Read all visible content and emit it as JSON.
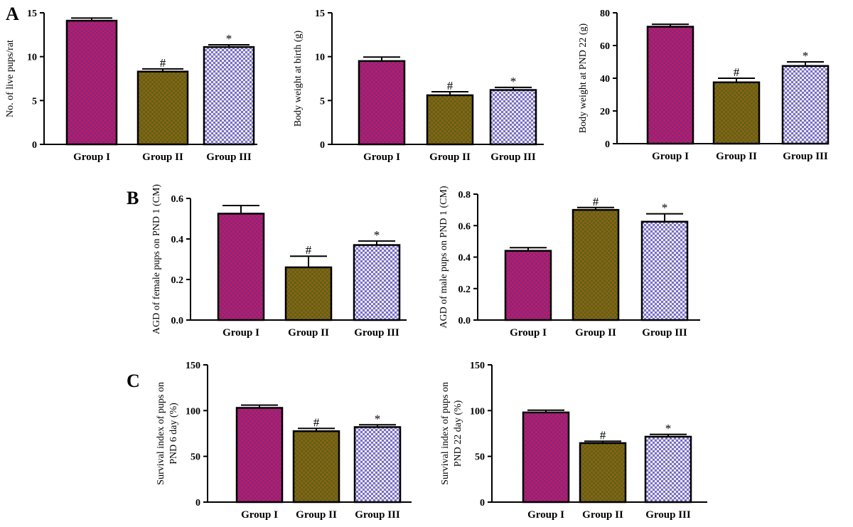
{
  "panel_letters": [
    "A",
    "B",
    "C"
  ],
  "colors": {
    "group_i": [
      "#c8185a",
      "#7a2a8a"
    ],
    "group_ii": [
      "#9a5a14",
      "#4f6a16"
    ],
    "group_iii": [
      "#7b6fc4",
      "#e8e8f2"
    ]
  },
  "chart_data": [
    {
      "type": "bar",
      "panel": "A",
      "ylabel": "No. of live pups/rat",
      "categories": [
        "Group I",
        "Group II",
        "Group III"
      ],
      "values": [
        14.1,
        8.3,
        11.1
      ],
      "errors": [
        0.3,
        0.3,
        0.25
      ],
      "annotations": [
        "",
        "#",
        "*"
      ],
      "ylim": [
        0,
        15
      ],
      "yticks": [
        "0",
        "5",
        "10",
        "15"
      ],
      "ytick_values": [
        0,
        5,
        10,
        15
      ],
      "grid": false
    },
    {
      "type": "bar",
      "panel": "A",
      "ylabel": "Body weight at birth (g)",
      "categories": [
        "Group I",
        "Group II",
        "Group III"
      ],
      "values": [
        9.5,
        5.6,
        6.2
      ],
      "errors": [
        0.45,
        0.4,
        0.3
      ],
      "annotations": [
        "",
        "#",
        "*"
      ],
      "ylim": [
        0,
        15
      ],
      "yticks": [
        "0",
        "5",
        "10",
        "15"
      ],
      "ytick_values": [
        0,
        5,
        10,
        15
      ],
      "grid": false
    },
    {
      "type": "bar",
      "panel": "A",
      "ylabel": "Body weight at PND 22 (g)",
      "categories": [
        "Group I",
        "Group II",
        "Group III"
      ],
      "values": [
        71.5,
        37.5,
        47.5
      ],
      "errors": [
        1.5,
        2.5,
        2.5
      ],
      "annotations": [
        "",
        "#",
        "*"
      ],
      "ylim": [
        0,
        80
      ],
      "yticks": [
        "0",
        "20",
        "40",
        "60",
        "80"
      ],
      "ytick_values": [
        0,
        20,
        40,
        60,
        80
      ],
      "grid": false
    },
    {
      "type": "bar",
      "panel": "B",
      "ylabel": "AGD of female pups on PND 1 (CM)",
      "categories": [
        "Group I",
        "Group II",
        "Group III"
      ],
      "values": [
        0.525,
        0.26,
        0.37
      ],
      "errors": [
        0.04,
        0.055,
        0.02
      ],
      "annotations": [
        "",
        "#",
        "*"
      ],
      "ylim": [
        0,
        0.6
      ],
      "yticks": [
        "0.0",
        "0.2",
        "0.4",
        "0.6"
      ],
      "ytick_values": [
        0,
        0.2,
        0.4,
        0.6
      ],
      "grid": false
    },
    {
      "type": "bar",
      "panel": "B",
      "ylabel": "AGD of male pups on PND 1 (CM)",
      "categories": [
        "Group I",
        "Group II",
        "Group III"
      ],
      "values": [
        0.44,
        0.7,
        0.625
      ],
      "errors": [
        0.02,
        0.015,
        0.05
      ],
      "annotations": [
        "",
        "#",
        "*"
      ],
      "ylim": [
        0,
        0.8
      ],
      "yticks": [
        "0.0",
        "0.2",
        "0.4",
        "0.6",
        "0.8"
      ],
      "ytick_values": [
        0,
        0.2,
        0.4,
        0.6,
        0.8
      ],
      "grid": false
    },
    {
      "type": "bar",
      "panel": "C",
      "ylabel": "Survival index of pups on PND 6 day (%)",
      "ylabel_lines": [
        "Survival index of pups on",
        "PND 6 day (%)"
      ],
      "categories": [
        "Group I",
        "Group II",
        "Group III"
      ],
      "values": [
        103,
        77.5,
        82
      ],
      "errors": [
        3,
        3,
        2.5
      ],
      "annotations": [
        "",
        "#",
        "*"
      ],
      "ylim": [
        0,
        150
      ],
      "yticks": [
        "0",
        "50",
        "100",
        "150"
      ],
      "ytick_values": [
        0,
        50,
        100,
        150
      ],
      "grid": false
    },
    {
      "type": "bar",
      "panel": "C",
      "ylabel": "Survival index of pups on PND 22 day (%)",
      "ylabel_lines": [
        "Survival index of pups on",
        "PND 22 day (%)"
      ],
      "categories": [
        "Group I",
        "Group II",
        "Group III"
      ],
      "values": [
        98,
        64.5,
        71.5
      ],
      "errors": [
        2.5,
        2,
        2.5
      ],
      "annotations": [
        "",
        "#",
        "*"
      ],
      "ylim": [
        0,
        150
      ],
      "yticks": [
        "0",
        "50",
        "100",
        "150"
      ],
      "ytick_values": [
        0,
        50,
        100,
        150
      ],
      "grid": false
    }
  ]
}
